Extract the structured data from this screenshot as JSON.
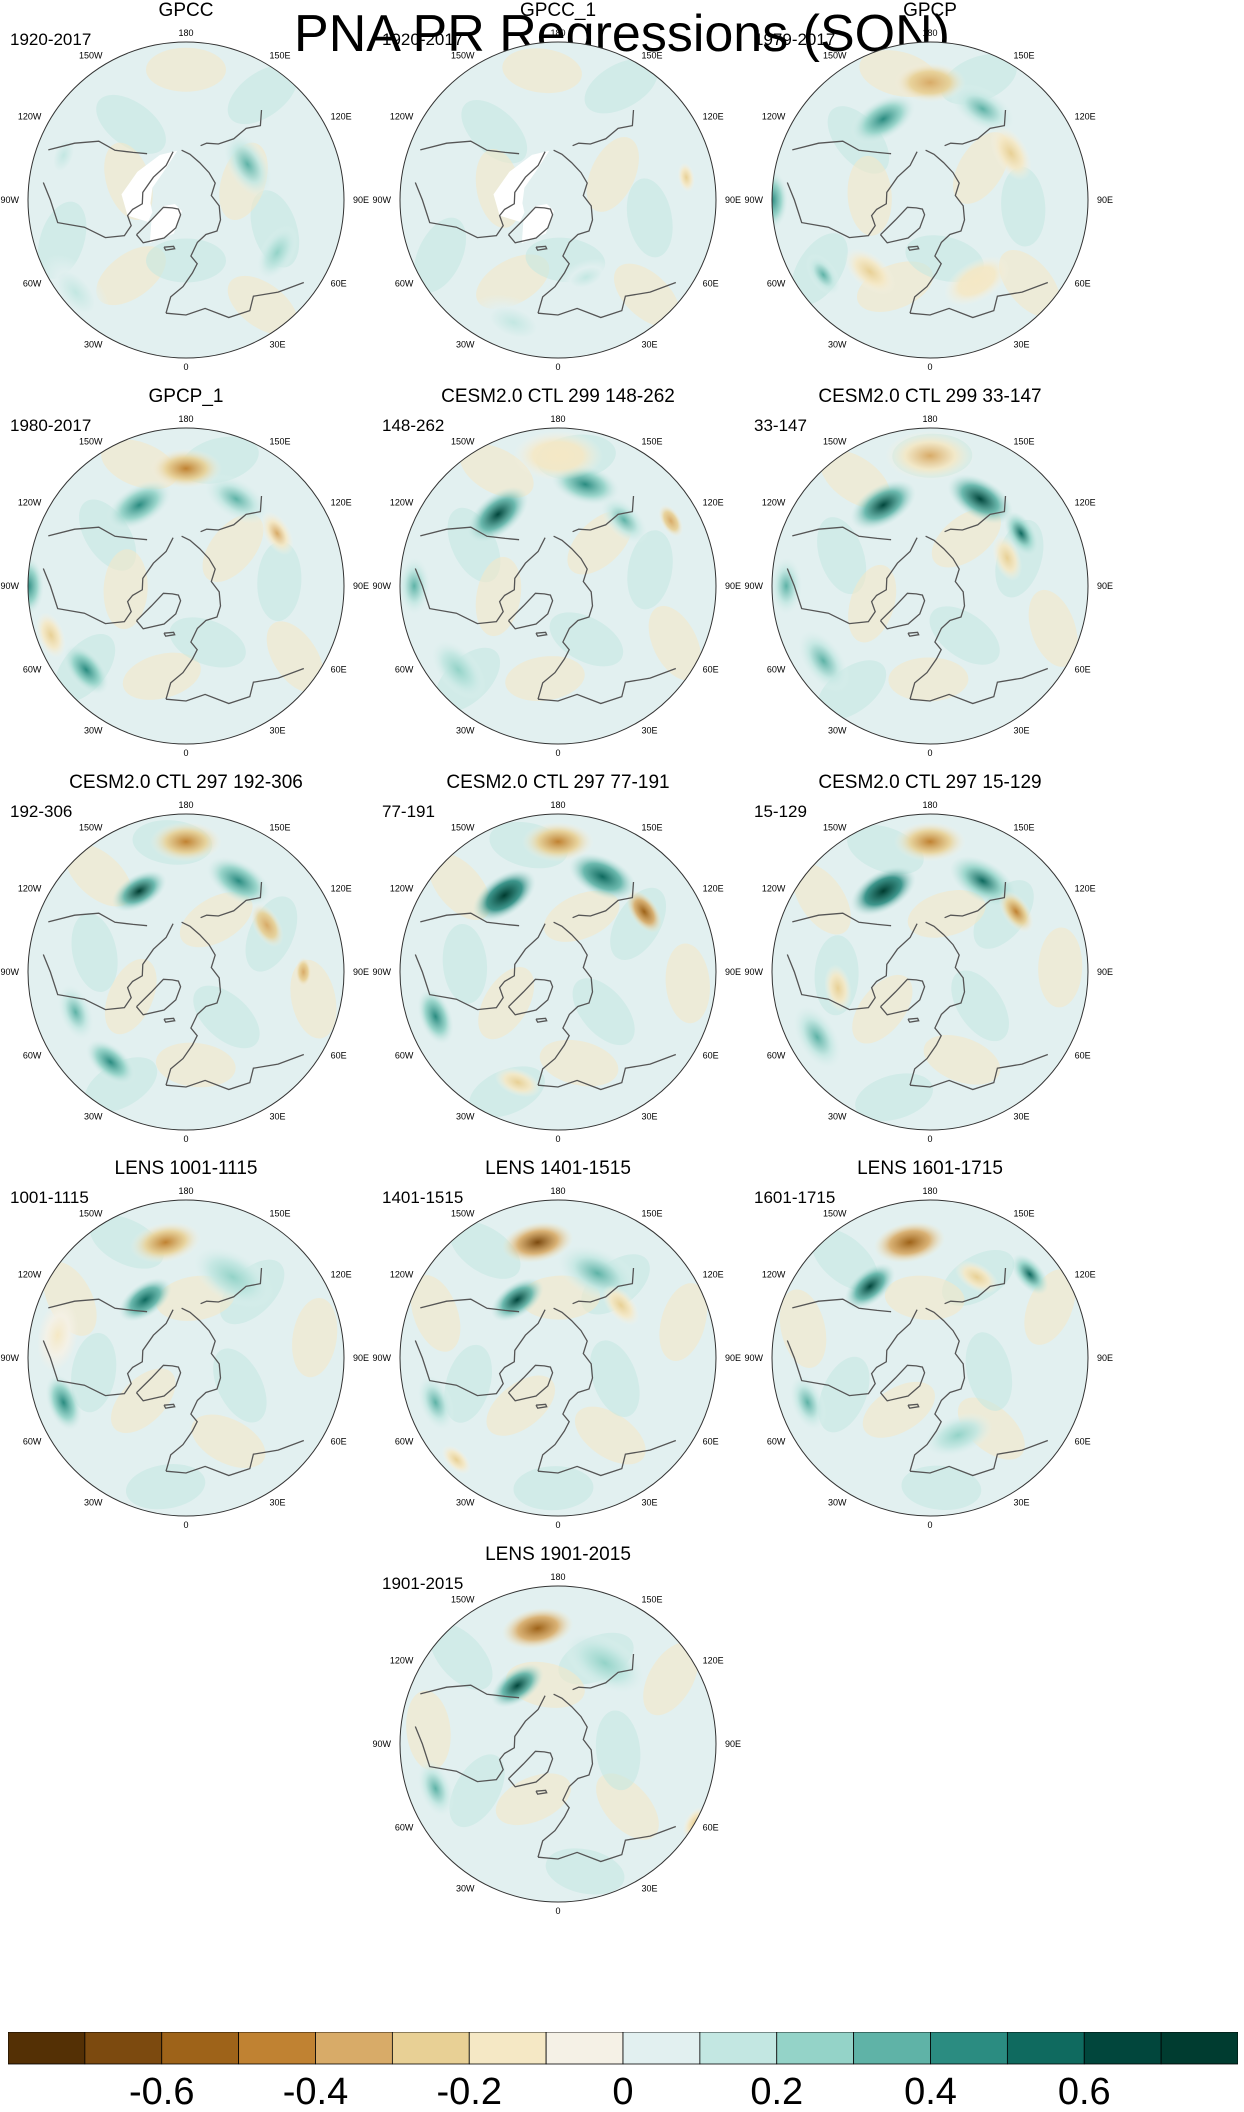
{
  "title": "PNA PR Regressions (SON)",
  "chart_data": {
    "type": "heatmap",
    "projection": "north-polar-stereographic",
    "variable": "PR regression on PNA index",
    "season": "SON",
    "longitude_labels": [
      "180",
      "150E",
      "120E",
      "90E",
      "60E",
      "30E",
      "0",
      "30W",
      "60W",
      "90W",
      "120W",
      "150W"
    ],
    "panels": [
      {
        "title": "GPCC",
        "period": "1920-2017",
        "missing_land": true,
        "features": [
          {
            "lon": 120,
            "lat": 55,
            "value": 0.3,
            "spread": 0.12
          },
          {
            "lon": 60,
            "lat": 40,
            "value": 0.2,
            "spread": 0.1
          },
          {
            "lon": -50,
            "lat": 25,
            "value": 0.15,
            "spread": 0.15
          },
          {
            "lon": -110,
            "lat": 30,
            "value": 0.1,
            "spread": 0.1
          }
        ]
      },
      {
        "title": "GPCC_1",
        "period": "1920-2017",
        "missing_land": true,
        "features": [
          {
            "lon": 100,
            "lat": 30,
            "value": -0.3,
            "spread": 0.05
          },
          {
            "lon": -20,
            "lat": 30,
            "value": 0.15,
            "spread": 0.15
          },
          {
            "lon": 20,
            "lat": 50,
            "value": 0.1,
            "spread": 0.1
          }
        ]
      },
      {
        "title": "GPCP",
        "period": "1979-2017",
        "features": [
          {
            "lon": 180,
            "lat": 35,
            "value": -0.4,
            "spread": 0.12
          },
          {
            "lon": -150,
            "lat": 45,
            "value": 0.4,
            "spread": 0.12
          },
          {
            "lon": 150,
            "lat": 40,
            "value": 0.35,
            "spread": 0.12
          },
          {
            "lon": -90,
            "lat": 20,
            "value": 0.45,
            "spread": 0.1
          },
          {
            "lon": -55,
            "lat": 30,
            "value": 0.35,
            "spread": 0.08
          },
          {
            "lon": 120,
            "lat": 45,
            "value": -0.3,
            "spread": 0.1
          },
          {
            "lon": -40,
            "lat": 45,
            "value": -0.25,
            "spread": 0.1
          },
          {
            "lon": 30,
            "lat": 45,
            "value": -0.2,
            "spread": 0.12
          }
        ]
      },
      {
        "title": "GPCP_1",
        "period": "1980-2017",
        "features": [
          {
            "lon": 180,
            "lat": 35,
            "value": -0.45,
            "spread": 0.12
          },
          {
            "lon": -150,
            "lat": 45,
            "value": 0.45,
            "spread": 0.12
          },
          {
            "lon": 150,
            "lat": 42,
            "value": 0.35,
            "spread": 0.12
          },
          {
            "lon": -90,
            "lat": 20,
            "value": 0.4,
            "spread": 0.1
          },
          {
            "lon": -50,
            "lat": 30,
            "value": 0.45,
            "spread": 0.1
          },
          {
            "lon": -70,
            "lat": 25,
            "value": -0.3,
            "spread": 0.08
          },
          {
            "lon": 120,
            "lat": 40,
            "value": -0.35,
            "spread": 0.08
          }
        ]
      },
      {
        "title": "CESM2.0 CTL 299 148-262",
        "period": "148-262",
        "features": [
          {
            "lon": -140,
            "lat": 45,
            "value": 0.65,
            "spread": 0.12
          },
          {
            "lon": 165,
            "lat": 40,
            "value": 0.45,
            "spread": 0.12
          },
          {
            "lon": 135,
            "lat": 45,
            "value": 0.35,
            "spread": 0.1
          },
          {
            "lon": 180,
            "lat": 30,
            "value": -0.2,
            "spread": 0.15
          },
          {
            "lon": -90,
            "lat": 25,
            "value": 0.3,
            "spread": 0.1
          },
          {
            "lon": -50,
            "lat": 30,
            "value": 0.25,
            "spread": 0.12
          },
          {
            "lon": 120,
            "lat": 30,
            "value": -0.4,
            "spread": 0.06
          }
        ]
      },
      {
        "title": "CESM2.0 CTL 299 33-147",
        "period": "33-147",
        "features": [
          {
            "lon": -150,
            "lat": 45,
            "value": 0.65,
            "spread": 0.12
          },
          {
            "lon": 150,
            "lat": 42,
            "value": 0.6,
            "spread": 0.12
          },
          {
            "lon": 120,
            "lat": 40,
            "value": 0.5,
            "spread": 0.08
          },
          {
            "lon": 180,
            "lat": 30,
            "value": -0.35,
            "spread": 0.15
          },
          {
            "lon": -90,
            "lat": 25,
            "value": 0.35,
            "spread": 0.1
          },
          {
            "lon": -55,
            "lat": 30,
            "value": 0.35,
            "spread": 0.12
          },
          {
            "lon": 110,
            "lat": 50,
            "value": -0.3,
            "spread": 0.08
          }
        ]
      },
      {
        "title": "CESM2.0 CTL 297 192-306",
        "period": "192-306",
        "features": [
          {
            "lon": -150,
            "lat": 45,
            "value": 0.7,
            "spread": 0.1
          },
          {
            "lon": 150,
            "lat": 40,
            "value": 0.45,
            "spread": 0.12
          },
          {
            "lon": 180,
            "lat": 30,
            "value": -0.45,
            "spread": 0.12
          },
          {
            "lon": 120,
            "lat": 45,
            "value": -0.4,
            "spread": 0.08
          },
          {
            "lon": -40,
            "lat": 35,
            "value": 0.4,
            "spread": 0.1
          },
          {
            "lon": -70,
            "lat": 35,
            "value": 0.3,
            "spread": 0.1
          },
          {
            "lon": 90,
            "lat": 35,
            "value": -0.4,
            "spread": 0.05
          }
        ]
      },
      {
        "title": "CESM2.0 CTL 297 77-191",
        "period": "77-191",
        "features": [
          {
            "lon": -145,
            "lat": 45,
            "value": 0.75,
            "spread": 0.12
          },
          {
            "lon": 155,
            "lat": 40,
            "value": 0.55,
            "spread": 0.12
          },
          {
            "lon": 180,
            "lat": 30,
            "value": -0.45,
            "spread": 0.12
          },
          {
            "lon": 125,
            "lat": 40,
            "value": -0.6,
            "spread": 0.08
          },
          {
            "lon": -70,
            "lat": 30,
            "value": 0.4,
            "spread": 0.1
          },
          {
            "lon": -20,
            "lat": 35,
            "value": -0.3,
            "spread": 0.08
          }
        ]
      },
      {
        "title": "CESM2.0 CTL 297 15-129",
        "period": "15-129",
        "features": [
          {
            "lon": -150,
            "lat": 45,
            "value": 0.75,
            "spread": 0.12
          },
          {
            "lon": 150,
            "lat": 40,
            "value": 0.5,
            "spread": 0.12
          },
          {
            "lon": 180,
            "lat": 30,
            "value": -0.45,
            "spread": 0.12
          },
          {
            "lon": 125,
            "lat": 40,
            "value": -0.45,
            "spread": 0.08
          },
          {
            "lon": -60,
            "lat": 30,
            "value": 0.35,
            "spread": 0.12
          },
          {
            "lon": -80,
            "lat": 45,
            "value": -0.3,
            "spread": 0.08
          }
        ]
      },
      {
        "title": "LENS 1001-1115",
        "period": "1001-1115",
        "features": [
          {
            "lon": -170,
            "lat": 35,
            "value": -0.5,
            "spread": 0.12
          },
          {
            "lon": -145,
            "lat": 55,
            "value": 0.55,
            "spread": 0.1
          },
          {
            "lon": 150,
            "lat": 45,
            "value": 0.25,
            "spread": 0.15
          },
          {
            "lon": -70,
            "lat": 30,
            "value": 0.4,
            "spread": 0.1
          },
          {
            "lon": -100,
            "lat": 30,
            "value": -0.15,
            "spread": 0.12
          }
        ]
      },
      {
        "title": "LENS 1401-1515",
        "period": "1401-1515",
        "features": [
          {
            "lon": -170,
            "lat": 35,
            "value": -0.65,
            "spread": 0.12
          },
          {
            "lon": -145,
            "lat": 55,
            "value": 0.6,
            "spread": 0.1
          },
          {
            "lon": 155,
            "lat": 45,
            "value": 0.3,
            "spread": 0.15
          },
          {
            "lon": 130,
            "lat": 50,
            "value": -0.3,
            "spread": 0.08
          },
          {
            "lon": -70,
            "lat": 30,
            "value": 0.35,
            "spread": 0.1
          },
          {
            "lon": -45,
            "lat": 25,
            "value": -0.3,
            "spread": 0.06
          }
        ]
      },
      {
        "title": "LENS 1601-1715",
        "period": "1601-1715",
        "features": [
          {
            "lon": -170,
            "lat": 35,
            "value": -0.55,
            "spread": 0.12
          },
          {
            "lon": -140,
            "lat": 45,
            "value": 0.65,
            "spread": 0.1
          },
          {
            "lon": 130,
            "lat": 30,
            "value": 0.5,
            "spread": 0.08
          },
          {
            "lon": 150,
            "lat": 45,
            "value": -0.3,
            "spread": 0.08
          },
          {
            "lon": -70,
            "lat": 30,
            "value": 0.3,
            "spread": 0.1
          },
          {
            "lon": 20,
            "lat": 50,
            "value": 0.2,
            "spread": 0.12
          }
        ]
      },
      {
        "title": "LENS 1901-2015",
        "period": "1901-2015",
        "features": [
          {
            "lon": -170,
            "lat": 35,
            "value": -0.6,
            "spread": 0.12
          },
          {
            "lon": -145,
            "lat": 55,
            "value": 0.6,
            "spread": 0.1
          },
          {
            "lon": 150,
            "lat": 45,
            "value": 0.25,
            "spread": 0.15
          },
          {
            "lon": -70,
            "lat": 30,
            "value": 0.35,
            "spread": 0.1
          },
          {
            "lon": 60,
            "lat": 20,
            "value": -0.3,
            "spread": 0.06
          }
        ]
      }
    ],
    "colorbar": {
      "levels": [
        -0.7,
        -0.6,
        -0.5,
        -0.4,
        -0.3,
        -0.2,
        -0.1,
        0,
        0.1,
        0.2,
        0.3,
        0.4,
        0.5,
        0.6,
        0.7
      ],
      "colors": [
        "#543005",
        "#7c4a0f",
        "#9e6319",
        "#c08232",
        "#d8ab68",
        "#e8d095",
        "#f5e8c5",
        "#f5f1e6",
        "#e2f0f0",
        "#c3e7e2",
        "#94d3c8",
        "#5fb3a7",
        "#2b8c81",
        "#0f6a5f",
        "#01463c",
        "#003c30"
      ],
      "tick_labels": [
        "-0.6",
        "-0.4",
        "-0.2",
        "0",
        "0.2",
        "0.4",
        "0.6"
      ],
      "tick_values": [
        -0.6,
        -0.4,
        -0.2,
        0,
        0.2,
        0.4,
        0.6
      ]
    }
  }
}
